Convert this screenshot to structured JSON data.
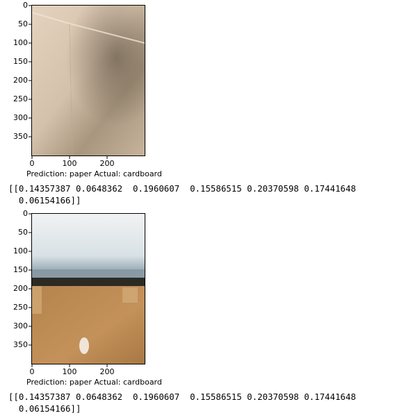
{
  "cells": [
    {
      "yticks": [
        "0",
        "50",
        "100",
        "150",
        "200",
        "250",
        "300",
        "350"
      ],
      "xticks": [
        "0",
        "100",
        "200"
      ],
      "caption": "Prediction: paper Actual: cardboard",
      "output_line1": "[[0.14357387 0.0648362  0.1960607  0.15586515 0.20370598 0.17441648",
      "output_line2": "  0.06154166]]"
    },
    {
      "yticks": [
        "0",
        "50",
        "100",
        "150",
        "200",
        "250",
        "300",
        "350"
      ],
      "xticks": [
        "0",
        "100",
        "200"
      ],
      "caption": "Prediction: paper Actual: cardboard",
      "output_line1": "[[0.14357387 0.0648362  0.1960607  0.15586515 0.20370598 0.17441648",
      "output_line2": "  0.06154166]]"
    }
  ],
  "colors": {
    "paper_light": "#d9c6b2",
    "paper_shadow": "#8c7b68",
    "sky": "#e6ecf0",
    "cardboard": "#b88650",
    "dark_strip": "#2b2a25"
  }
}
